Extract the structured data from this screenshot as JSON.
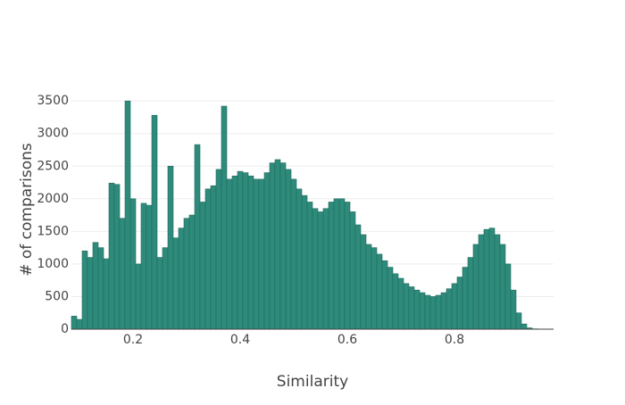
{
  "chart_data": {
    "type": "histogram",
    "x_label": "Similarity",
    "y_label": "# of comparisons",
    "bins": [
      0.085,
      0.095,
      0.105,
      0.115,
      0.125,
      0.135,
      0.145,
      0.155,
      0.165,
      0.175,
      0.185,
      0.195,
      0.205,
      0.215,
      0.225,
      0.235,
      0.245,
      0.255,
      0.265,
      0.275,
      0.285,
      0.295,
      0.305,
      0.315,
      0.325,
      0.335,
      0.345,
      0.355,
      0.365,
      0.375,
      0.385,
      0.395,
      0.405,
      0.415,
      0.425,
      0.435,
      0.445,
      0.455,
      0.465,
      0.475,
      0.485,
      0.495,
      0.505,
      0.515,
      0.525,
      0.535,
      0.545,
      0.555,
      0.565,
      0.575,
      0.585,
      0.595,
      0.605,
      0.615,
      0.625,
      0.635,
      0.645,
      0.655,
      0.665,
      0.675,
      0.685,
      0.695,
      0.705,
      0.715,
      0.725,
      0.735,
      0.745,
      0.755,
      0.765,
      0.775,
      0.785,
      0.795,
      0.805,
      0.815,
      0.825,
      0.835,
      0.845,
      0.855,
      0.865,
      0.875,
      0.885,
      0.895,
      0.905,
      0.915,
      0.925,
      0.935,
      0.945,
      0.955,
      0.965,
      0.975,
      0.985
    ],
    "values": [
      200,
      150,
      1200,
      1100,
      1330,
      1250,
      1080,
      2240,
      2220,
      1700,
      3500,
      2000,
      1000,
      1930,
      1900,
      3280,
      1100,
      1250,
      2500,
      1400,
      1550,
      1700,
      1750,
      2830,
      1950,
      2150,
      2200,
      2450,
      3420,
      2300,
      2350,
      2420,
      2400,
      2350,
      2300,
      2300,
      2400,
      2550,
      2600,
      2550,
      2450,
      2300,
      2150,
      2050,
      1950,
      1850,
      1800,
      1850,
      1950,
      2000,
      2000,
      1950,
      1800,
      1600,
      1450,
      1300,
      1250,
      1150,
      1050,
      950,
      850,
      780,
      700,
      650,
      600,
      560,
      520,
      500,
      520,
      560,
      620,
      700,
      800,
      950,
      1100,
      1300,
      1450,
      1530,
      1550,
      1450,
      1300,
      1000,
      600,
      250,
      80,
      20,
      5,
      0,
      0,
      0
    ],
    "color": "#2e8b7b",
    "xlim": [
      0.085,
      0.985
    ],
    "xticks": [
      0.2,
      0.4,
      0.6,
      0.8
    ],
    "ylim": [
      0,
      3680
    ],
    "yticks": [
      0,
      500,
      1000,
      1500,
      2000,
      2500,
      3000,
      3500
    ],
    "grid": true
  }
}
